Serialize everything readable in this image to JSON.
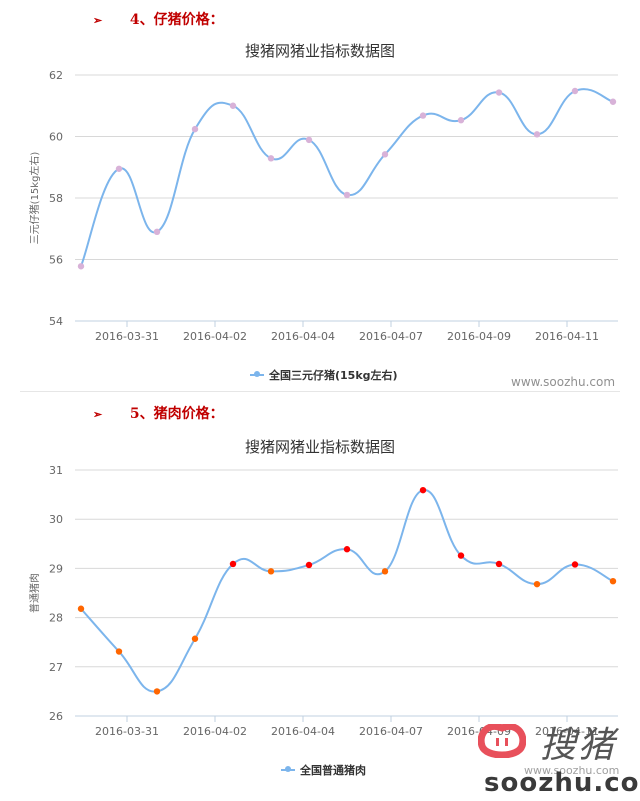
{
  "sections": [
    {
      "bullet": "➢",
      "heading": "4、仔猪价格："
    },
    {
      "bullet": "➢",
      "heading": "5、猪肉价格："
    }
  ],
  "charts": [
    {
      "title": "搜猪网猪业指标数据图",
      "ylabel": "三元仔猪(15kg左右)",
      "legend": "全国三元仔猪(15kg左右)",
      "credit": "www.soozhu.com"
    },
    {
      "title": "搜猪网猪业指标数据图",
      "ylabel": "普通猪肉",
      "legend": "全国普通猪肉",
      "credit": "www.soozhu.com"
    }
  ],
  "watermark": {
    "brand_chars": "搜猪",
    "url_big": "soozhu.com",
    "url_small": "www.soozhu.com"
  },
  "colors": {
    "line": "#7cb5ec",
    "marker_piglet": "#d8b2d8",
    "marker_up": "#ff0000",
    "marker_down": "#ff6600",
    "heading": "#c00000",
    "grid": "#d8d8d8"
  },
  "chart_data": [
    {
      "type": "line",
      "title": "搜猪网猪业指标数据图",
      "xlabel": "",
      "ylabel": "三元仔猪(15kg左右)",
      "ylim": [
        54,
        62
      ],
      "yticks": [
        54,
        56,
        58,
        60,
        62
      ],
      "xtick_labels": [
        "2016-03-31",
        "2016-04-02",
        "2016-04-04",
        "2016-04-07",
        "2016-04-09",
        "2016-04-11"
      ],
      "grid": true,
      "legend_position": "bottom",
      "series": [
        {
          "name": "全国三元仔猪(15kg左右)",
          "values": [
            55.78,
            58.95,
            56.9,
            60.24,
            61.0,
            59.29,
            59.89,
            58.1,
            59.42,
            60.68,
            60.53,
            61.43,
            60.07,
            61.48,
            61.13
          ]
        }
      ]
    },
    {
      "type": "line",
      "title": "搜猪网猪业指标数据图",
      "xlabel": "",
      "ylabel": "普通猪肉",
      "ylim": [
        26,
        31
      ],
      "yticks": [
        26,
        27,
        28,
        29,
        30,
        31
      ],
      "xtick_labels": [
        "2016-03-31",
        "2016-04-02",
        "2016-04-04",
        "2016-04-07",
        "2016-04-09",
        "2016-04-11"
      ],
      "grid": true,
      "legend_position": "bottom",
      "series": [
        {
          "name": "全国普通猪肉",
          "values": [
            28.18,
            27.31,
            26.5,
            27.57,
            29.09,
            28.94,
            29.07,
            29.39,
            28.94,
            30.59,
            29.26,
            29.09,
            28.68,
            29.08,
            28.74
          ]
        }
      ]
    }
  ]
}
